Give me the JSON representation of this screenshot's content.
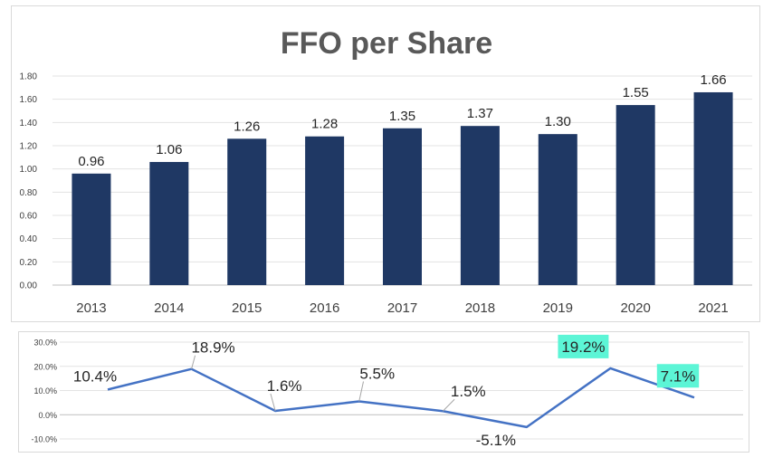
{
  "chart_data": [
    {
      "type": "bar",
      "title": "FFO per Share",
      "categories": [
        "2013",
        "2014",
        "2015",
        "2016",
        "2017",
        "2018",
        "2019",
        "2020",
        "2021"
      ],
      "values": [
        0.96,
        1.06,
        1.26,
        1.28,
        1.35,
        1.37,
        1.3,
        1.55,
        1.66
      ],
      "data_labels": [
        "0.96",
        "1.06",
        "1.26",
        "1.28",
        "1.35",
        "1.37",
        "1.30",
        "1.55",
        "1.66"
      ],
      "y_ticks": [
        "0.00",
        "0.20",
        "0.40",
        "0.60",
        "0.80",
        "1.00",
        "1.20",
        "1.40",
        "1.60",
        "1.80"
      ],
      "ylim": [
        0,
        1.8
      ],
      "grid": true,
      "bar_color": "#1f3864"
    },
    {
      "type": "line",
      "values": [
        10.4,
        18.9,
        1.6,
        5.5,
        1.5,
        -5.1,
        19.2,
        7.1
      ],
      "data_labels": [
        "10.4%",
        "18.9%",
        "1.6%",
        "5.5%",
        "1.5%",
        "-5.1%",
        "19.2%",
        "7.1%"
      ],
      "highlighted": [
        false,
        false,
        false,
        false,
        false,
        false,
        true,
        true
      ],
      "y_ticks": [
        "-10.0%",
        "0.0%",
        "10.0%",
        "20.0%",
        "30.0%"
      ],
      "ylim": [
        -10,
        30
      ],
      "grid": true,
      "line_color": "#4472c4",
      "highlight_color": "#5cf5d6"
    }
  ]
}
